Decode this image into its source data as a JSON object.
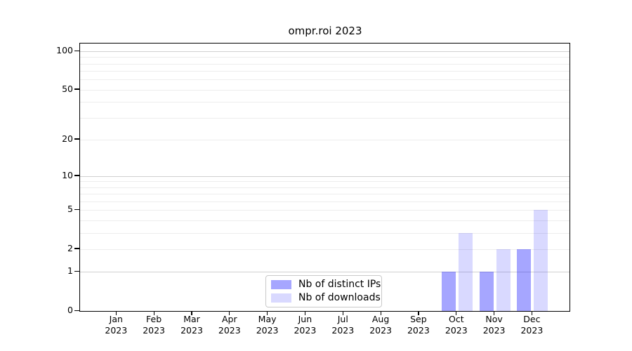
{
  "chart_data": {
    "type": "bar",
    "title": "ompr.roi 2023",
    "categories": [
      "Jan",
      "Feb",
      "Mar",
      "Apr",
      "May",
      "Jun",
      "Jul",
      "Aug",
      "Sep",
      "Oct",
      "Nov",
      "Dec"
    ],
    "year_label": "2023",
    "series": [
      {
        "name": "Nb of distinct IPs",
        "color": "#0000ff",
        "alpha": 0.35,
        "rendered_color": "#a6a6ff",
        "values": [
          0,
          0,
          0,
          0,
          0,
          0,
          0,
          0,
          0,
          1,
          1,
          2
        ]
      },
      {
        "name": "Nb of downloads",
        "color": "#0000ff",
        "alpha": 0.15,
        "rendered_color": "#d9d9ff",
        "values": [
          0,
          0,
          0,
          0,
          0,
          0,
          0,
          0,
          0,
          3,
          2,
          5
        ]
      }
    ],
    "yscale": "log1p",
    "ylim": [
      0,
      100
    ],
    "y_tick_labels": [
      0,
      1,
      2,
      5,
      10,
      20,
      50,
      100
    ],
    "y_major_gridlines": [
      1,
      10,
      100
    ],
    "y_minor_gridlines": [
      2,
      3,
      4,
      5,
      6,
      7,
      8,
      9,
      20,
      30,
      40,
      50,
      60,
      70,
      80,
      90
    ],
    "grid": true,
    "legend_position": "lower center",
    "legend_entries": [
      "Nb of distinct IPs",
      "Nb of downloads"
    ]
  },
  "colors": {
    "background": "#ffffff",
    "axis": "#000000",
    "major_grid": "#d0d0d0",
    "minor_grid": "#ededed",
    "legend_border": "#c9c9c9",
    "text": "#000000"
  }
}
